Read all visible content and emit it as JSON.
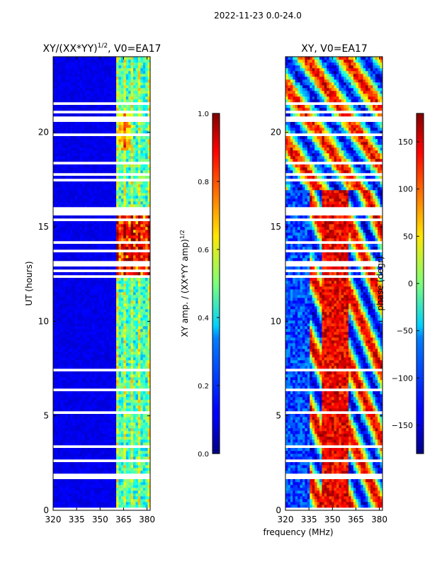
{
  "page": {
    "title": "2022-11-23 0.0-24.0"
  },
  "chart_data": [
    {
      "type": "heatmap",
      "title": "XY/(XX*YY)",
      "title_power": "1/2",
      "title_suffix": ", V0=EA17",
      "xlabel": "",
      "ylabel": "UT (hours)",
      "xlim": [
        320,
        382
      ],
      "ylim": [
        0,
        24
      ],
      "xticks": [
        320,
        335,
        350,
        365,
        380
      ],
      "yticks": [
        0,
        5,
        10,
        15,
        20
      ],
      "colorbar": {
        "label": "XY amp. / (XX*YY amp)",
        "label_power": "1/2",
        "range": [
          0.0,
          1.0
        ],
        "ticks": [
          "0.0",
          "0.2",
          "0.4",
          "0.6",
          "0.8",
          "1.0"
        ],
        "tick_values": [
          0.0,
          0.2,
          0.4,
          0.6,
          0.8,
          1.0
        ]
      },
      "description": "low amplitude (~0.05) below 360 MHz; 360-382 MHz ~0.3-0.6 with peaks ~0.9 near 13-15.5 UT; frequent blank rows (flagged data)"
    },
    {
      "type": "heatmap",
      "title": "XY, V0=EA17",
      "xlabel": "frequency (MHz)",
      "ylabel": "",
      "xlim": [
        320,
        382
      ],
      "ylim": [
        0,
        24
      ],
      "xticks": [
        320,
        335,
        350,
        365,
        380
      ],
      "yticks": [
        0,
        5,
        10,
        15,
        20
      ],
      "colorbar": {
        "label": "phase (degr)",
        "range": [
          -180,
          180
        ],
        "ticks": [
          "−150",
          "−100",
          "−50",
          "0",
          "50",
          "100",
          "150"
        ],
        "tick_values": [
          -150,
          -100,
          -50,
          0,
          50,
          100,
          150
        ]
      },
      "description": "phase wraps across full range; red band ~345-360 MHz from 2-17 UT; blue band ~320-335 MHz; noisy above 17 UT"
    }
  ]
}
